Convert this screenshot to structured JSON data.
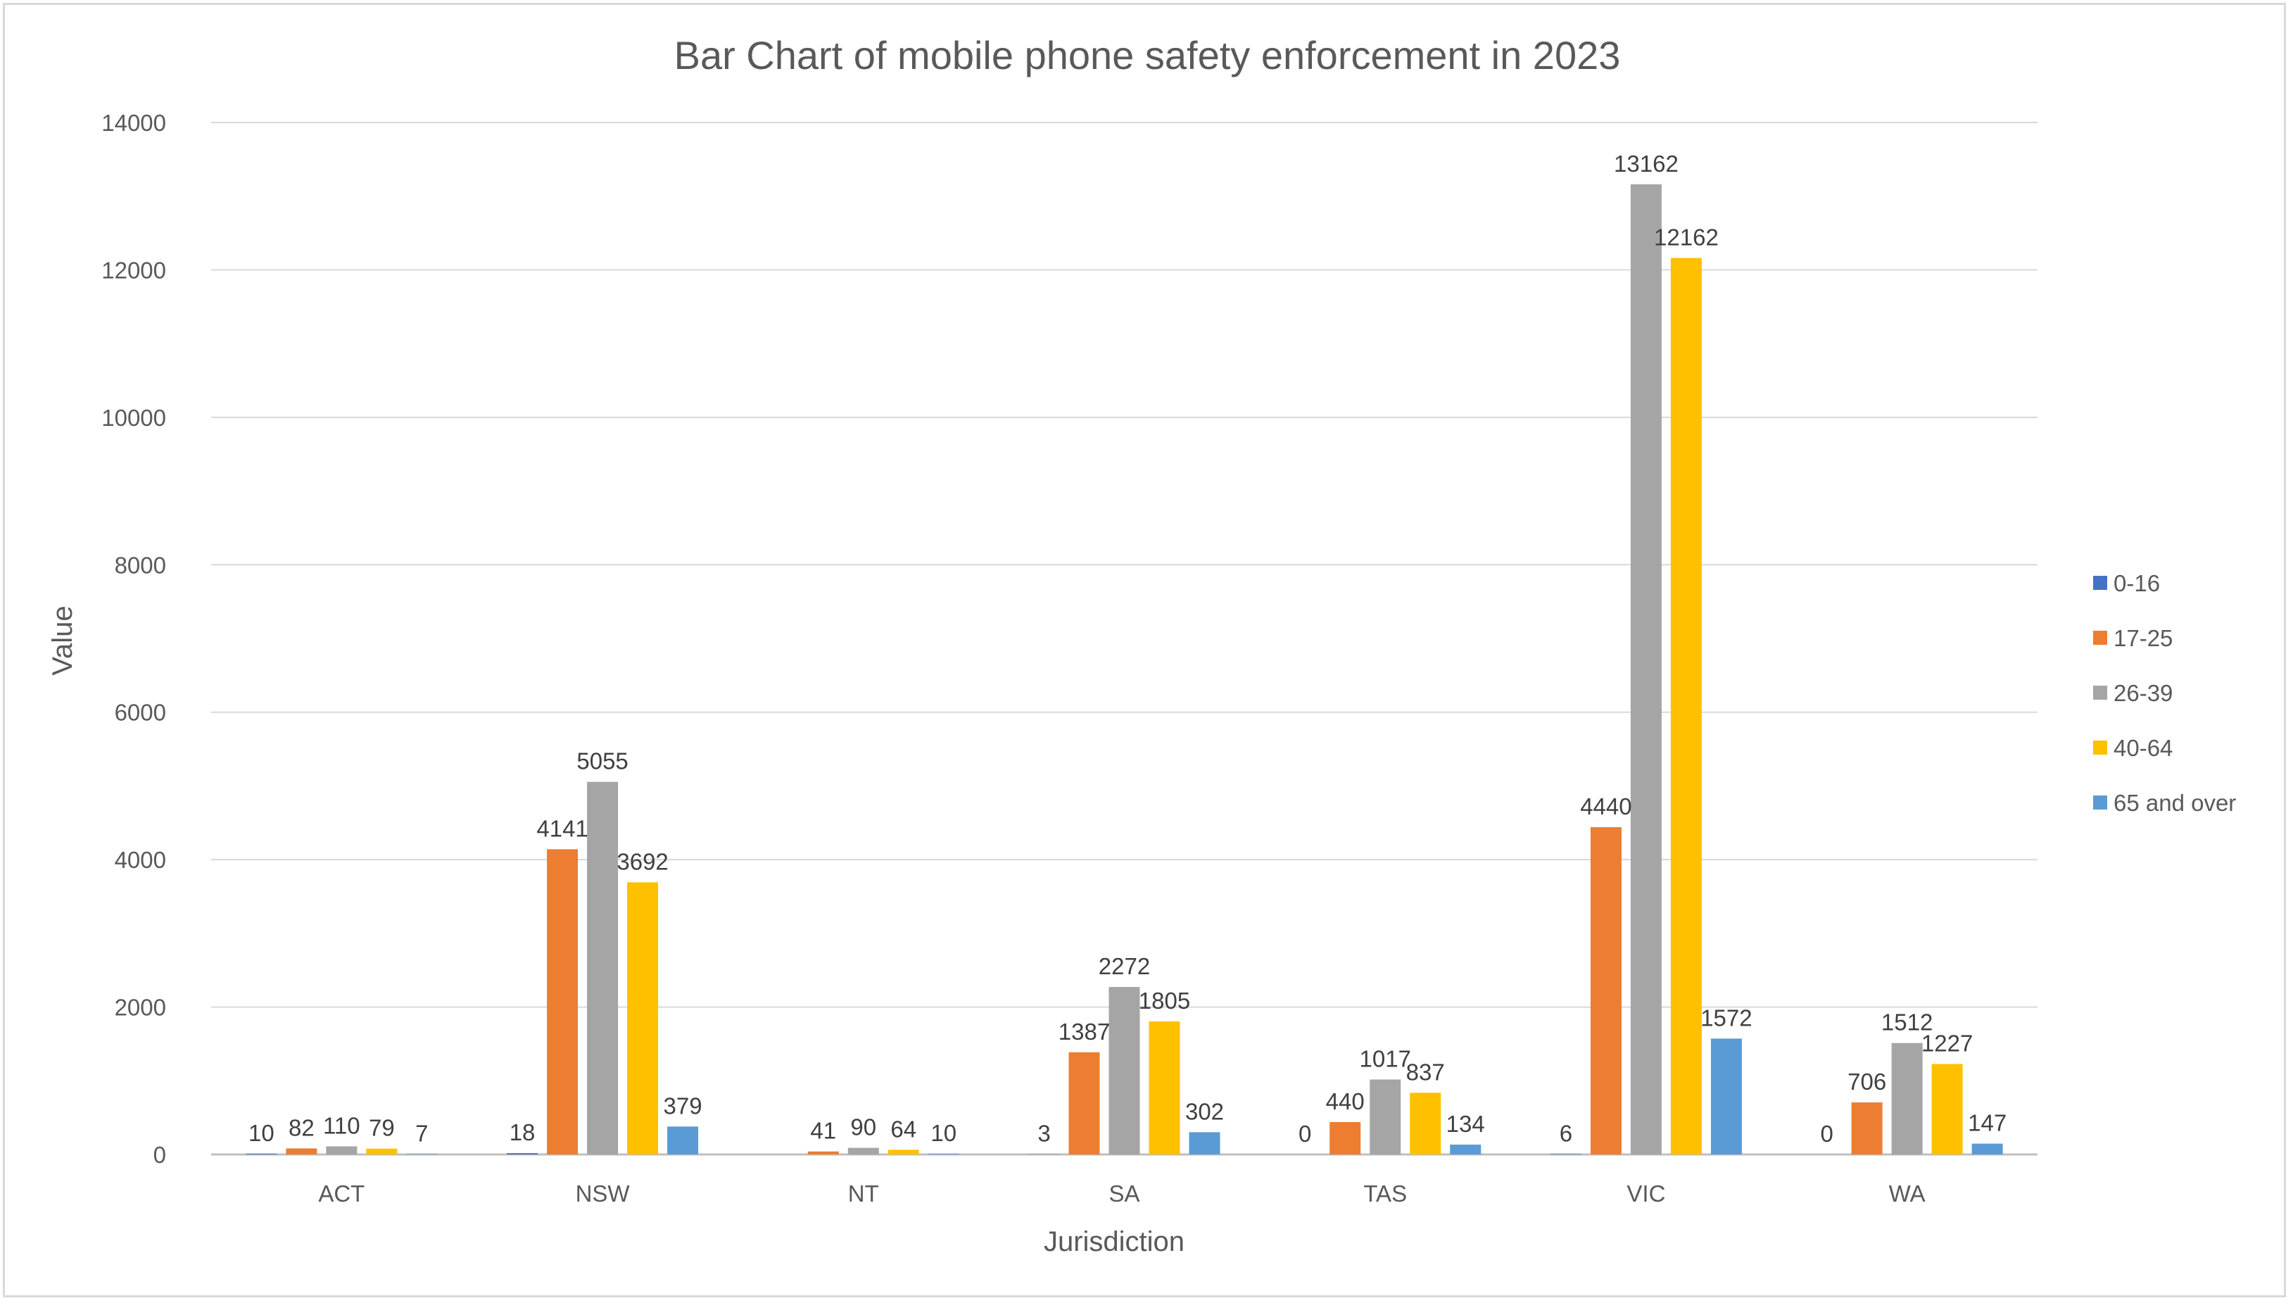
{
  "chart_data": {
    "type": "bar",
    "title": "Bar Chart of mobile phone safety enforcement in 2023",
    "xlabel": "Jurisdiction",
    "ylabel": "Value",
    "ylim": [
      0,
      14000
    ],
    "yticks": [
      "0",
      "2000",
      "4000",
      "6000",
      "8000",
      "10000",
      "12000",
      "14000"
    ],
    "ytick_values": [
      0,
      2000,
      4000,
      6000,
      8000,
      10000,
      12000,
      14000
    ],
    "grid": true,
    "legend_position": "right",
    "categories": [
      "ACT",
      "NSW",
      "NT",
      "SA",
      "TAS",
      "VIC",
      "WA"
    ],
    "series": [
      {
        "name": "0-16",
        "color": "#4472c4",
        "values": [
          10,
          18,
          0,
          3,
          0,
          6,
          0
        ],
        "labels": [
          "10",
          "18",
          "",
          "3",
          "0",
          "6",
          "0"
        ]
      },
      {
        "name": "17-25",
        "color": "#ed7d31",
        "values": [
          82,
          4141,
          41,
          1387,
          440,
          4440,
          706
        ],
        "labels": [
          "82",
          "4141",
          "41",
          "1387",
          "440",
          "4440",
          "706"
        ]
      },
      {
        "name": "26-39",
        "color": "#a5a5a5",
        "values": [
          110,
          5055,
          90,
          2272,
          1017,
          13162,
          1512
        ],
        "labels": [
          "110",
          "5055",
          "90",
          "2272",
          "1017",
          "13162",
          "1512"
        ]
      },
      {
        "name": "40-64",
        "color": "#ffc000",
        "values": [
          79,
          3692,
          64,
          1805,
          837,
          12162,
          1227
        ],
        "labels": [
          "79",
          "3692",
          "64",
          "1805",
          "837",
          "12162",
          "1227"
        ]
      },
      {
        "name": "65 and over",
        "color": "#5b9bd5",
        "values": [
          7,
          379,
          10,
          302,
          134,
          1572,
          147
        ],
        "labels": [
          "7",
          "379",
          "10",
          "302",
          "134",
          "1572",
          "147"
        ]
      }
    ]
  }
}
